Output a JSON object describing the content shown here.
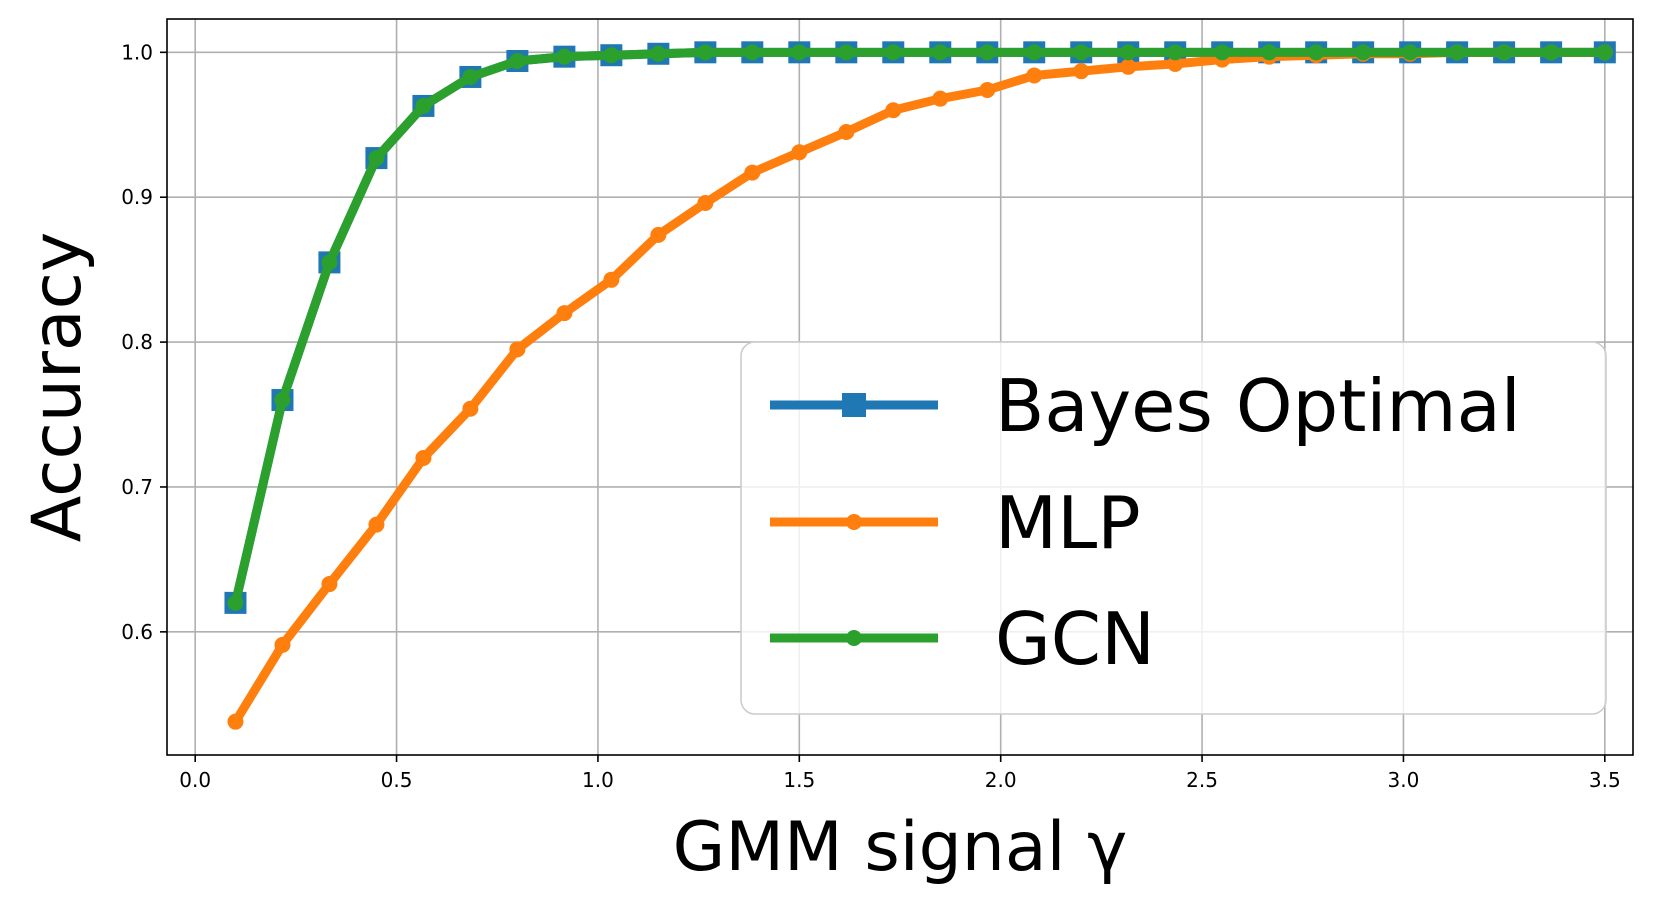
{
  "chart_data": {
    "type": "line",
    "title": "",
    "xlabel": "GMM signal γ",
    "ylabel": "Accuracy",
    "xlim": [
      -0.07,
      3.57
    ],
    "ylim": [
      0.515,
      1.023
    ],
    "xticks": [
      "0.0",
      "0.5",
      "1.0",
      "1.5",
      "2.0",
      "2.5",
      "3.0",
      "3.5"
    ],
    "yticks": [
      "0.6",
      "0.7",
      "0.8",
      "0.9",
      "1.0"
    ],
    "grid": true,
    "legend_position": "lower-right",
    "x": [
      0.1,
      0.2167,
      0.3333,
      0.45,
      0.5667,
      0.6833,
      0.8,
      0.9167,
      1.0333,
      1.15,
      1.2667,
      1.3833,
      1.5,
      1.6167,
      1.7333,
      1.85,
      1.9667,
      2.0833,
      2.2,
      2.3167,
      2.4333,
      2.55,
      2.6667,
      2.7833,
      2.9,
      3.0167,
      3.1333,
      3.25,
      3.3667,
      3.5
    ],
    "series": [
      {
        "name": "Bayes Optimal",
        "color": "#1f77b4",
        "marker": "square",
        "values": [
          0.62,
          0.76,
          0.855,
          0.927,
          0.963,
          0.983,
          0.994,
          0.997,
          0.998,
          0.999,
          1.0,
          1.0,
          1.0,
          1.0,
          1.0,
          1.0,
          1.0,
          1.0,
          1.0,
          1.0,
          1.0,
          1.0,
          1.0,
          1.0,
          1.0,
          1.0,
          1.0,
          1.0,
          1.0,
          1.0
        ]
      },
      {
        "name": "MLP",
        "color": "#ff7f0e",
        "marker": "circle",
        "values": [
          0.538,
          0.591,
          0.633,
          0.674,
          0.72,
          0.754,
          0.795,
          0.82,
          0.843,
          0.874,
          0.896,
          0.917,
          0.931,
          0.945,
          0.96,
          0.968,
          0.974,
          0.984,
          0.987,
          0.99,
          0.992,
          0.995,
          0.997,
          0.998,
          0.999,
          0.999,
          1.0,
          1.0,
          1.0,
          1.0
        ]
      },
      {
        "name": "GCN",
        "color": "#2ca02c",
        "marker": "circle",
        "values": [
          0.62,
          0.76,
          0.855,
          0.927,
          0.963,
          0.983,
          0.994,
          0.997,
          0.998,
          0.999,
          1.0,
          1.0,
          1.0,
          1.0,
          1.0,
          1.0,
          1.0,
          1.0,
          1.0,
          1.0,
          1.0,
          1.0,
          1.0,
          1.0,
          1.0,
          1.0,
          1.0,
          1.0,
          1.0,
          1.0
        ]
      }
    ]
  }
}
